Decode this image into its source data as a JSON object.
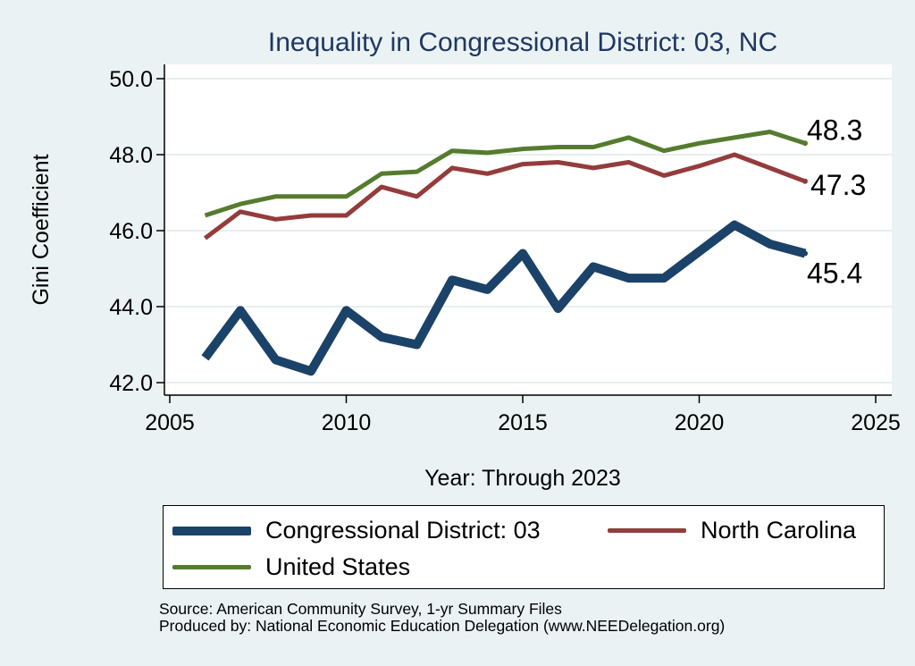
{
  "chart_data": {
    "type": "line",
    "title": "Inequality in Congressional District:  03, NC",
    "xlabel": "Year: Through 2023",
    "ylabel": "Gini Coefficient",
    "xlim": [
      2005,
      2025
    ],
    "ylim": [
      42.0,
      50.0
    ],
    "xticks": [
      "2005",
      "2010",
      "2015",
      "2020",
      "2025"
    ],
    "yticks": [
      "42.0",
      "44.0",
      "46.0",
      "48.0",
      "50.0"
    ],
    "x": [
      2006,
      2007,
      2008,
      2009,
      2010,
      2011,
      2012,
      2013,
      2014,
      2015,
      2016,
      2017,
      2018,
      2019,
      2020,
      2021,
      2022,
      2023
    ],
    "series": [
      {
        "name": "Congressional District:  03",
        "color": "#1b4268",
        "values": [
          42.65,
          43.9,
          42.6,
          42.3,
          43.9,
          43.2,
          43.0,
          44.7,
          44.45,
          45.4,
          43.95,
          45.05,
          44.75,
          44.75,
          45.45,
          46.15,
          45.65,
          45.4
        ],
        "end_label": "45.4"
      },
      {
        "name": "North Carolina",
        "color": "#943c3c",
        "values": [
          45.8,
          46.5,
          46.3,
          46.4,
          46.4,
          47.15,
          46.9,
          47.65,
          47.5,
          47.75,
          47.8,
          47.65,
          47.8,
          47.45,
          47.7,
          48.0,
          47.65,
          47.3
        ],
        "end_label": "47.3"
      },
      {
        "name": "United States",
        "color": "#557c2e",
        "values": [
          46.4,
          46.7,
          46.9,
          46.9,
          46.9,
          47.5,
          47.55,
          48.1,
          48.05,
          48.15,
          48.2,
          48.2,
          48.45,
          48.1,
          48.3,
          48.45,
          48.6,
          48.3
        ],
        "end_label": "48.3"
      }
    ],
    "legend": [
      {
        "label": "Congressional District:  03",
        "color": "#1b4268"
      },
      {
        "label": "North Carolina",
        "color": "#943c3c"
      },
      {
        "label": "United States",
        "color": "#557c2e"
      }
    ],
    "legend_position": "bottom",
    "grid": "horizontal"
  },
  "footer": {
    "source": "Source: American Community Survey, 1-yr Summary Files",
    "produced": "Produced by: National Economic Education Delegation (www.NEEDelegation.org)"
  }
}
